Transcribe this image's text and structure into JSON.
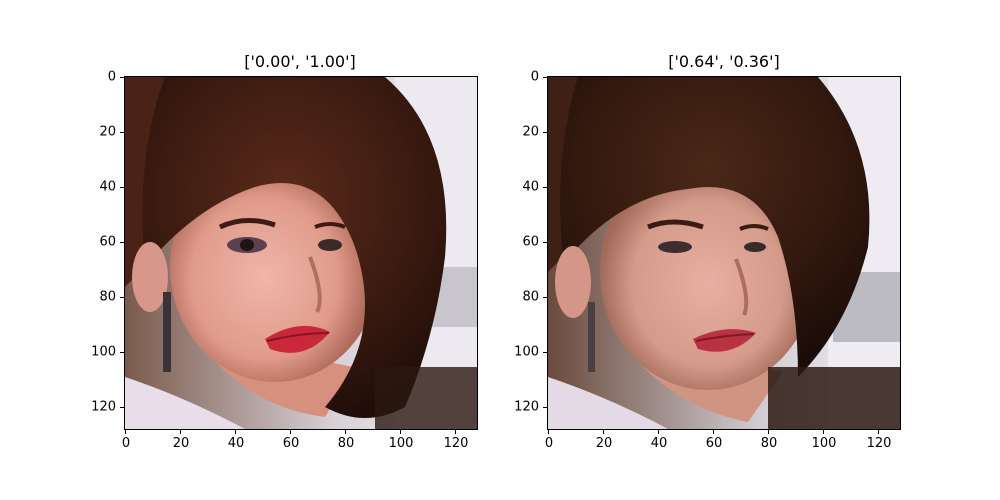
{
  "figure": {
    "panels": [
      {
        "title": "['0.00', '1.00']",
        "image": "portrait-original",
        "x_ticks": [
          "0",
          "20",
          "40",
          "60",
          "80",
          "100",
          "120"
        ],
        "y_ticks": [
          "0",
          "20",
          "40",
          "60",
          "80",
          "100",
          "120"
        ]
      },
      {
        "title": "['0.64', '0.36']",
        "image": "portrait-reconstruction",
        "x_ticks": [
          "0",
          "20",
          "40",
          "60",
          "80",
          "100",
          "120"
        ],
        "y_ticks": [
          "0",
          "20",
          "40",
          "60",
          "80",
          "100",
          "120"
        ]
      }
    ]
  }
}
